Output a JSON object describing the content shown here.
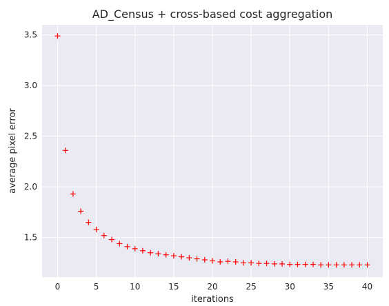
{
  "chart_data": {
    "type": "scatter",
    "title": "AD_Census + cross-based cost aggregation",
    "xlabel": "iterations",
    "ylabel": "average pixel error",
    "xlim": [
      -2,
      42
    ],
    "ylim": [
      1.11,
      3.6
    ],
    "xticks": [
      0,
      5,
      10,
      15,
      20,
      25,
      30,
      35,
      40
    ],
    "yticks": [
      1.5,
      2.0,
      2.5,
      3.0,
      3.5
    ],
    "xtick_labels": [
      "0",
      "5",
      "10",
      "15",
      "20",
      "25",
      "30",
      "35",
      "40"
    ],
    "ytick_labels": [
      "1.5",
      "2.0",
      "2.5",
      "3.0",
      "3.5"
    ],
    "grid": true,
    "marker": "+",
    "colors": {
      "marker": "#ff0000",
      "plot_background": "#eaeaf2",
      "grid": "#ffffff",
      "text": "#262626"
    },
    "x": [
      0,
      1,
      2,
      3,
      4,
      5,
      6,
      7,
      8,
      9,
      10,
      11,
      12,
      13,
      14,
      15,
      16,
      17,
      18,
      19,
      20,
      21,
      22,
      23,
      24,
      25,
      26,
      27,
      28,
      29,
      30,
      31,
      32,
      33,
      34,
      35,
      36,
      37,
      38,
      39,
      40
    ],
    "y": [
      3.49,
      2.36,
      1.93,
      1.76,
      1.65,
      1.58,
      1.52,
      1.48,
      1.44,
      1.41,
      1.39,
      1.37,
      1.35,
      1.34,
      1.33,
      1.32,
      1.31,
      1.3,
      1.29,
      1.28,
      1.27,
      1.26,
      1.265,
      1.26,
      1.25,
      1.25,
      1.245,
      1.245,
      1.24,
      1.24,
      1.235,
      1.235,
      1.235,
      1.235,
      1.23,
      1.23,
      1.23,
      1.23,
      1.23,
      1.23,
      1.23
    ]
  }
}
